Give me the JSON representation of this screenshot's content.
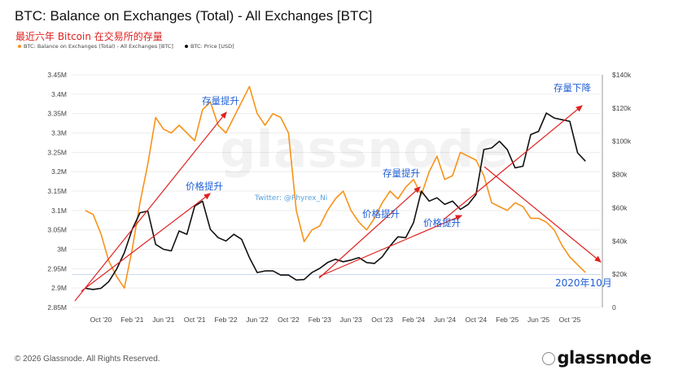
{
  "header": {
    "title": "BTC: Balance on Exchanges (Total) - All Exchanges [BTC]",
    "subtitle": "最近六年 Bitcoin 在交易所的存量"
  },
  "legend": [
    {
      "label": "BTC: Balance on Exchanges (Total) - All Exchanges [BTC]",
      "color": "#f7931a"
    },
    {
      "label": "BTC: Price [USD]",
      "color": "#111111"
    }
  ],
  "footer": {
    "copyright": "© 2026 Glassnode. All Rights Reserved.",
    "brand": "glassnode"
  },
  "colors": {
    "balance": "#f7931a",
    "price": "#111111",
    "annotation": "#e02020",
    "annotation_text": "#1f5fd6"
  },
  "chart_data": {
    "type": "line",
    "x_ticks": [
      "Oct '20",
      "Feb '21",
      "Jun '21",
      "Oct '21",
      "Feb '22",
      "Jun '22",
      "Oct '22",
      "Feb '23",
      "Jun '23",
      "Oct '23",
      "Feb '24",
      "Jun '24",
      "Oct '24",
      "Feb '25",
      "Jun '25",
      "Oct '25"
    ],
    "y_left_ticks": [
      "2.85M",
      "2.9M",
      "2.95M",
      "3M",
      "3.05M",
      "3.1M",
      "3.15M",
      "3.2M",
      "3.25M",
      "3.3M",
      "3.35M",
      "3.4M",
      "3.45M"
    ],
    "y_right_ticks": [
      "0",
      "$20k",
      "$40k",
      "$60k",
      "$80k",
      "$100k",
      "$120k",
      "$140k"
    ],
    "ylim_left": [
      2.85,
      3.45
    ],
    "ylim_right": [
      0,
      140000
    ],
    "series": [
      {
        "name": "BTC: Balance on Exchanges (Total) - All Exchanges [BTC]",
        "axis": "left",
        "unit": "M BTC",
        "x": [
          "2020-08",
          "2020-09",
          "2020-10",
          "2020-11",
          "2020-12",
          "2021-01",
          "2021-02",
          "2021-03",
          "2021-04",
          "2021-05",
          "2021-06",
          "2021-07",
          "2021-08",
          "2021-09",
          "2021-10",
          "2021-11",
          "2021-12",
          "2022-01",
          "2022-02",
          "2022-03",
          "2022-04",
          "2022-05",
          "2022-06",
          "2022-07",
          "2022-08",
          "2022-09",
          "2022-10",
          "2022-11",
          "2022-12",
          "2023-01",
          "2023-02",
          "2023-03",
          "2023-04",
          "2023-05",
          "2023-06",
          "2023-07",
          "2023-08",
          "2023-09",
          "2023-10",
          "2023-11",
          "2023-12",
          "2024-01",
          "2024-02",
          "2024-03",
          "2024-04",
          "2024-05",
          "2024-06",
          "2024-07",
          "2024-08",
          "2024-09",
          "2024-10",
          "2024-11",
          "2024-12",
          "2025-01",
          "2025-02",
          "2025-03",
          "2025-04",
          "2025-05",
          "2025-06",
          "2025-07",
          "2025-08",
          "2025-09",
          "2025-10",
          "2025-11",
          "2025-12"
        ],
        "values": [
          3.1,
          3.09,
          3.04,
          2.97,
          2.93,
          2.9,
          3.0,
          3.12,
          3.22,
          3.34,
          3.31,
          3.3,
          3.32,
          3.3,
          3.28,
          3.36,
          3.38,
          3.32,
          3.3,
          3.34,
          3.38,
          3.42,
          3.35,
          3.32,
          3.35,
          3.34,
          3.3,
          3.1,
          3.02,
          3.05,
          3.06,
          3.1,
          3.13,
          3.15,
          3.1,
          3.07,
          3.05,
          3.08,
          3.12,
          3.15,
          3.13,
          3.16,
          3.18,
          3.14,
          3.2,
          3.24,
          3.18,
          3.19,
          3.25,
          3.24,
          3.23,
          3.19,
          3.12,
          3.11,
          3.1,
          3.12,
          3.11,
          3.08,
          3.08,
          3.07,
          3.05,
          3.01,
          2.98,
          2.96,
          2.94
        ]
      },
      {
        "name": "BTC: Price [USD]",
        "axis": "right",
        "unit": "USD",
        "x": [
          "2020-08",
          "2020-09",
          "2020-10",
          "2020-11",
          "2020-12",
          "2021-01",
          "2021-02",
          "2021-03",
          "2021-04",
          "2021-05",
          "2021-06",
          "2021-07",
          "2021-08",
          "2021-09",
          "2021-10",
          "2021-11",
          "2021-12",
          "2022-01",
          "2022-02",
          "2022-03",
          "2022-04",
          "2022-05",
          "2022-06",
          "2022-07",
          "2022-08",
          "2022-09",
          "2022-10",
          "2022-11",
          "2022-12",
          "2023-01",
          "2023-02",
          "2023-03",
          "2023-04",
          "2023-05",
          "2023-06",
          "2023-07",
          "2023-08",
          "2023-09",
          "2023-10",
          "2023-11",
          "2023-12",
          "2024-01",
          "2024-02",
          "2024-03",
          "2024-04",
          "2024-05",
          "2024-06",
          "2024-07",
          "2024-08",
          "2024-09",
          "2024-10",
          "2024-11",
          "2024-12",
          "2025-01",
          "2025-02",
          "2025-03",
          "2025-04",
          "2025-05",
          "2025-06",
          "2025-07",
          "2025-08",
          "2025-09",
          "2025-10",
          "2025-11",
          "2025-12"
        ],
        "values": [
          11500,
          10800,
          11500,
          15500,
          23000,
          33000,
          47000,
          57000,
          58000,
          38000,
          35000,
          34000,
          46000,
          44000,
          61000,
          64000,
          47000,
          42000,
          40000,
          44000,
          41000,
          30000,
          21000,
          22000,
          22000,
          19500,
          19500,
          16500,
          16800,
          21000,
          23500,
          27000,
          29000,
          27500,
          28500,
          30000,
          27000,
          26500,
          30500,
          37000,
          42500,
          42000,
          51000,
          70000,
          64000,
          66000,
          62000,
          64000,
          59000,
          62000,
          68000,
          95000,
          96000,
          100000,
          95000,
          84000,
          85000,
          104000,
          106000,
          117000,
          114000,
          113000,
          112000,
          93000,
          88000
        ]
      }
    ],
    "annotations": [
      {
        "text": "存量提升",
        "color": "#1f5fd6"
      },
      {
        "text": "价格提升",
        "color": "#1f5fd6"
      },
      {
        "text": "存量提升",
        "color": "#1f5fd6"
      },
      {
        "text": "价格提升",
        "color": "#1f5fd6"
      },
      {
        "text": "价格提升",
        "color": "#1f5fd6"
      },
      {
        "text": "存量下降",
        "color": "#1f5fd6"
      },
      {
        "text": "2020年10月",
        "color": "#1f5fd6"
      }
    ],
    "watermarks": [
      "glassnode",
      "Twitter: @Phyrex_Ni"
    ]
  }
}
